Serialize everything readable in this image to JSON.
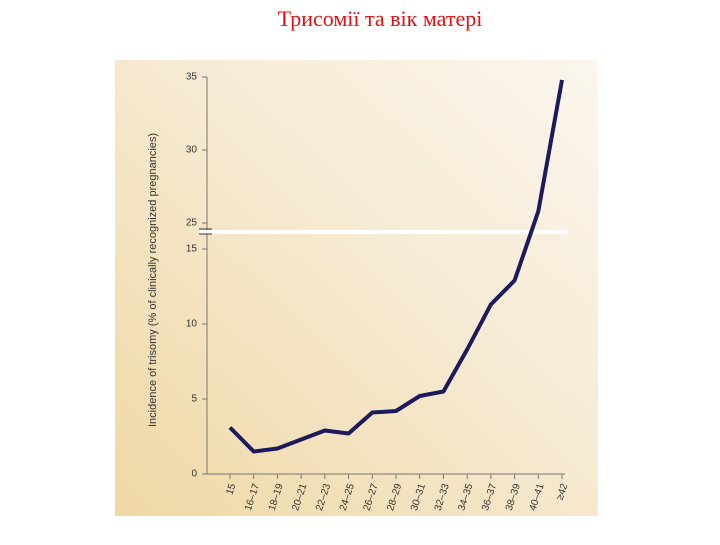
{
  "chart_data": {
    "type": "line",
    "title": "Трисомії та вік матері",
    "y_label": "Incidence of trisomy (% of clinically recognized pregnancies)",
    "categories": [
      "15",
      "16–17",
      "18–19",
      "20–21",
      "22–23",
      "24–25",
      "26–27",
      "28–29",
      "30–31",
      "32–33",
      "34–35",
      "36–37",
      "38–39",
      "40–41",
      "≥42"
    ],
    "series": [
      {
        "name": "Trisomy",
        "color": "#1c1a5c",
        "values": [
          3.1,
          1.5,
          1.7,
          2.3,
          2.9,
          2.7,
          4.1,
          4.2,
          5.2,
          5.5,
          8.3,
          11.3,
          12.9,
          25.8,
          34.8
        ]
      }
    ],
    "ylim": [
      0,
      35
    ],
    "yticks": [
      0,
      5,
      10,
      15,
      25,
      30,
      35
    ],
    "axis_break": [
      15,
      25
    ]
  }
}
